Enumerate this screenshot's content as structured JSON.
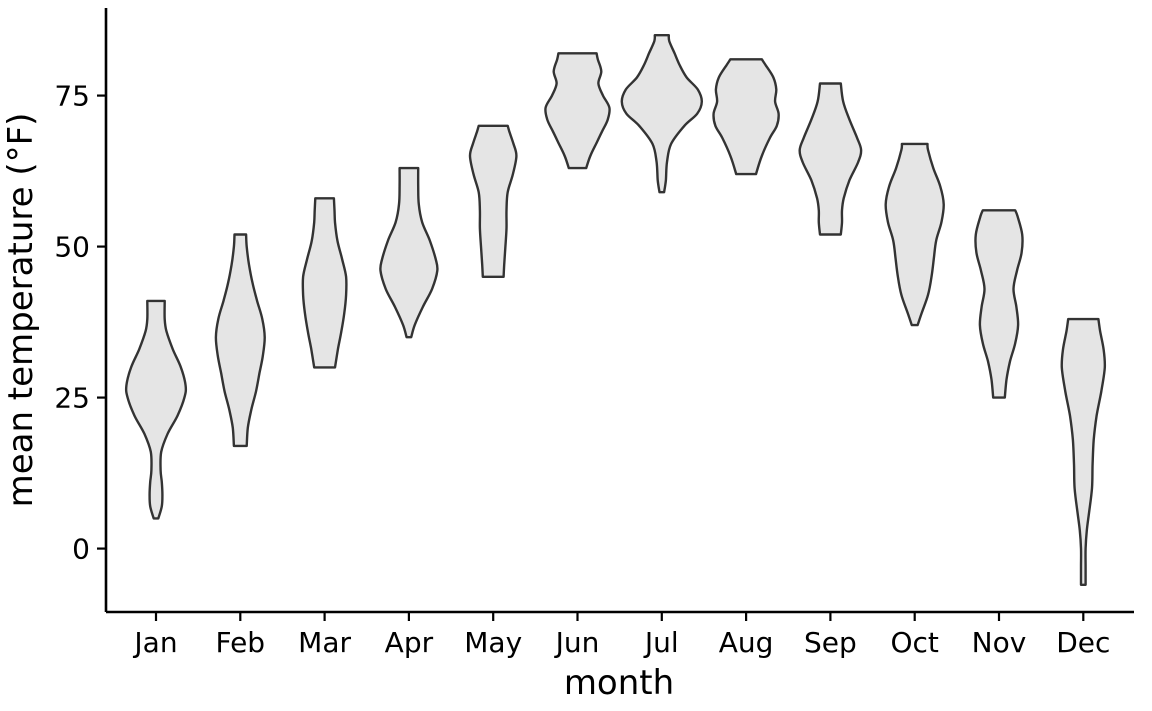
{
  "chart_data": {
    "type": "violin",
    "title": "",
    "xlabel": "month",
    "ylabel": "mean temperature (°F)",
    "categories": [
      "Jan",
      "Feb",
      "Mar",
      "Apr",
      "May",
      "Jun",
      "Jul",
      "Aug",
      "Sep",
      "Oct",
      "Nov",
      "Dec"
    ],
    "yticks": [
      0,
      25,
      50,
      75
    ],
    "ylim": [
      -10.5,
      89.5
    ],
    "grid": false,
    "colors": {
      "fill": "#e5e5e5",
      "stroke": "#333333",
      "axis": "#000000"
    },
    "violins": [
      {
        "category": "Jan",
        "min": 5,
        "max": 41,
        "profile": [
          [
            5,
            0.04
          ],
          [
            7,
            0.1
          ],
          [
            9,
            0.11
          ],
          [
            11,
            0.1
          ],
          [
            13,
            0.08
          ],
          [
            16,
            0.09
          ],
          [
            19,
            0.2
          ],
          [
            22,
            0.37
          ],
          [
            25,
            0.49
          ],
          [
            27,
            0.51
          ],
          [
            30,
            0.43
          ],
          [
            33,
            0.29
          ],
          [
            36,
            0.18
          ],
          [
            38,
            0.15
          ],
          [
            41,
            0.15
          ]
        ]
      },
      {
        "category": "Feb",
        "min": 17,
        "max": 52,
        "profile": [
          [
            17,
            0.11
          ],
          [
            20,
            0.13
          ],
          [
            23,
            0.19
          ],
          [
            26,
            0.27
          ],
          [
            29,
            0.33
          ],
          [
            32,
            0.39
          ],
          [
            35,
            0.42
          ],
          [
            38,
            0.38
          ],
          [
            41,
            0.29
          ],
          [
            44,
            0.21
          ],
          [
            47,
            0.15
          ],
          [
            50,
            0.11
          ],
          [
            52,
            0.1
          ]
        ]
      },
      {
        "category": "Mar",
        "min": 30,
        "max": 58,
        "profile": [
          [
            30,
            0.18
          ],
          [
            33,
            0.23
          ],
          [
            36,
            0.29
          ],
          [
            39,
            0.34
          ],
          [
            42,
            0.37
          ],
          [
            45,
            0.37
          ],
          [
            48,
            0.3
          ],
          [
            51,
            0.22
          ],
          [
            54,
            0.18
          ],
          [
            56,
            0.17
          ],
          [
            58,
            0.16
          ]
        ]
      },
      {
        "category": "Apr",
        "min": 35,
        "max": 63,
        "profile": [
          [
            35,
            0.04
          ],
          [
            37,
            0.1
          ],
          [
            40,
            0.24
          ],
          [
            43,
            0.4
          ],
          [
            46,
            0.49
          ],
          [
            48,
            0.46
          ],
          [
            51,
            0.36
          ],
          [
            54,
            0.23
          ],
          [
            57,
            0.17
          ],
          [
            60,
            0.16
          ],
          [
            63,
            0.16
          ]
        ]
      },
      {
        "category": "May",
        "min": 45,
        "max": 70,
        "profile": [
          [
            45,
            0.18
          ],
          [
            47,
            0.19
          ],
          [
            50,
            0.21
          ],
          [
            53,
            0.23
          ],
          [
            56,
            0.23
          ],
          [
            59,
            0.25
          ],
          [
            62,
            0.34
          ],
          [
            65,
            0.4
          ],
          [
            67,
            0.35
          ],
          [
            69,
            0.28
          ],
          [
            70,
            0.25
          ]
        ]
      },
      {
        "category": "Jun",
        "min": 63,
        "max": 82,
        "profile": [
          [
            63,
            0.15
          ],
          [
            65,
            0.22
          ],
          [
            67,
            0.32
          ],
          [
            69,
            0.42
          ],
          [
            71,
            0.52
          ],
          [
            73,
            0.55
          ],
          [
            75,
            0.44
          ],
          [
            77,
            0.36
          ],
          [
            79,
            0.41
          ],
          [
            81,
            0.35
          ],
          [
            82,
            0.33
          ]
        ]
      },
      {
        "category": "Jul",
        "min": 59,
        "max": 85,
        "profile": [
          [
            59,
            0.04
          ],
          [
            61,
            0.07
          ],
          [
            64,
            0.09
          ],
          [
            67,
            0.16
          ],
          [
            70,
            0.39
          ],
          [
            72,
            0.61
          ],
          [
            74,
            0.69
          ],
          [
            76,
            0.62
          ],
          [
            78,
            0.43
          ],
          [
            80,
            0.31
          ],
          [
            82,
            0.22
          ],
          [
            84,
            0.13
          ],
          [
            85,
            0.12
          ]
        ]
      },
      {
        "category": "Aug",
        "min": 62,
        "max": 81,
        "profile": [
          [
            62,
            0.17
          ],
          [
            65,
            0.27
          ],
          [
            68,
            0.41
          ],
          [
            70,
            0.53
          ],
          [
            72,
            0.56
          ],
          [
            74,
            0.5
          ],
          [
            76,
            0.52
          ],
          [
            78,
            0.47
          ],
          [
            80,
            0.34
          ],
          [
            81,
            0.27
          ]
        ]
      },
      {
        "category": "Sep",
        "min": 52,
        "max": 77,
        "profile": [
          [
            52,
            0.18
          ],
          [
            54,
            0.2
          ],
          [
            56,
            0.2
          ],
          [
            58,
            0.23
          ],
          [
            61,
            0.33
          ],
          [
            64,
            0.48
          ],
          [
            66,
            0.53
          ],
          [
            68,
            0.46
          ],
          [
            71,
            0.33
          ],
          [
            74,
            0.22
          ],
          [
            77,
            0.18
          ]
        ]
      },
      {
        "category": "Oct",
        "min": 37,
        "max": 67,
        "profile": [
          [
            37,
            0.05
          ],
          [
            39,
            0.12
          ],
          [
            42,
            0.23
          ],
          [
            45,
            0.29
          ],
          [
            48,
            0.33
          ],
          [
            51,
            0.37
          ],
          [
            54,
            0.46
          ],
          [
            57,
            0.5
          ],
          [
            60,
            0.44
          ],
          [
            63,
            0.32
          ],
          [
            66,
            0.23
          ],
          [
            67,
            0.22
          ]
        ]
      },
      {
        "category": "Nov",
        "min": 25,
        "max": 56,
        "profile": [
          [
            25,
            0.1
          ],
          [
            28,
            0.13
          ],
          [
            31,
            0.19
          ],
          [
            34,
            0.28
          ],
          [
            37,
            0.33
          ],
          [
            40,
            0.3
          ],
          [
            43,
            0.25
          ],
          [
            46,
            0.31
          ],
          [
            49,
            0.39
          ],
          [
            52,
            0.4
          ],
          [
            55,
            0.32
          ],
          [
            56,
            0.28
          ]
        ]
      },
      {
        "category": "Dec",
        "min": -6,
        "max": 38,
        "profile": [
          [
            -6,
            0.04
          ],
          [
            -3,
            0.04
          ],
          [
            0,
            0.04
          ],
          [
            3,
            0.06
          ],
          [
            6,
            0.1
          ],
          [
            10,
            0.15
          ],
          [
            14,
            0.16
          ],
          [
            18,
            0.18
          ],
          [
            22,
            0.23
          ],
          [
            26,
            0.31
          ],
          [
            30,
            0.37
          ],
          [
            33,
            0.35
          ],
          [
            36,
            0.29
          ],
          [
            38,
            0.26
          ]
        ]
      }
    ]
  }
}
